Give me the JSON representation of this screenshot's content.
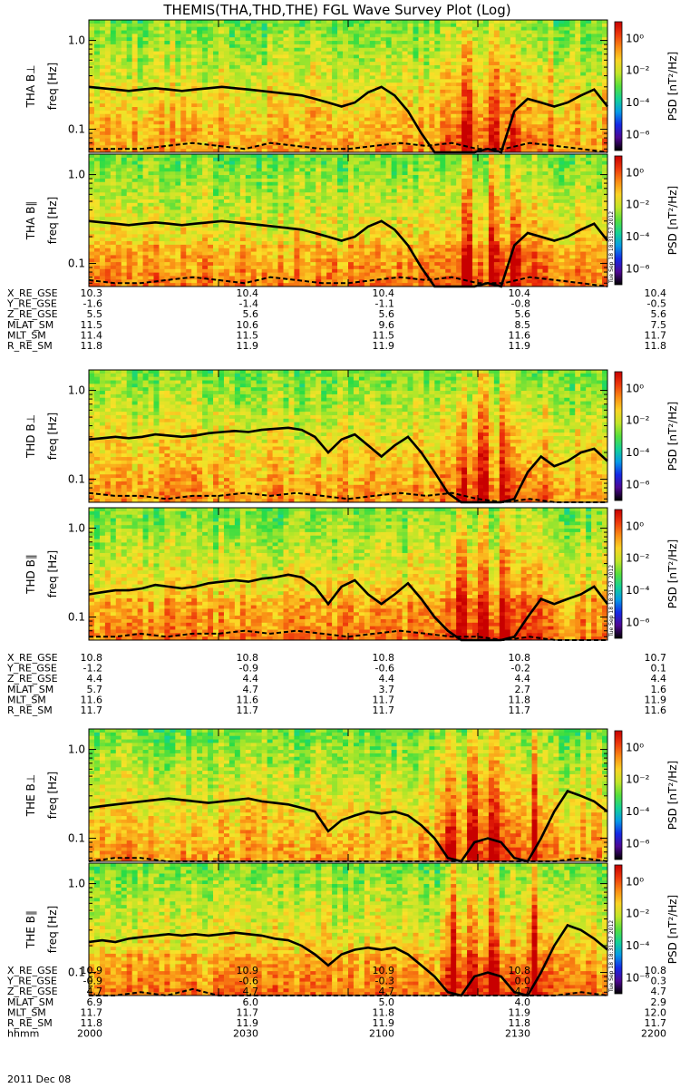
{
  "title": "THEMIS(THA,THD,THE) FGL Wave Survey Plot (Log)",
  "ylabel": "freq [Hz]",
  "colorbar_label": "PSD [nT²/Hz]",
  "colorbar_ticks": [
    "10⁰",
    "10⁻²",
    "10⁻⁴",
    "10⁻⁶"
  ],
  "freq_ticks": [
    "1.0",
    "0.1"
  ],
  "stamp": "Tue Sep 18 18:31:57 2012",
  "chart_data": {
    "type": "heatmap",
    "x_axis": {
      "label": "hhmm",
      "ticks": [
        "2000",
        "2030",
        "2100",
        "2130",
        "2200"
      ],
      "date": "2011 Dec 08"
    },
    "y_axis": {
      "label": "freq [Hz]",
      "scale": "log",
      "range": [
        0.055,
        1.7
      ],
      "ticks": [
        1.0,
        0.1
      ]
    },
    "colorbar": {
      "label": "PSD [nT²/Hz]",
      "scale": "log",
      "range_exponent": [
        -7,
        1
      ],
      "ticks_exponent": [
        0,
        -2,
        -4,
        -6
      ]
    },
    "probes": [
      {
        "id": "THA",
        "panels": [
          {
            "label": "THA B⊥",
            "bright_bands": [
              0.73,
              0.78,
              0.82
            ],
            "solid": [
              0.3,
              0.29,
              0.28,
              0.27,
              0.28,
              0.29,
              0.28,
              0.27,
              0.28,
              0.29,
              0.3,
              0.29,
              0.28,
              0.27,
              0.26,
              0.25,
              0.24,
              0.22,
              0.2,
              0.18,
              0.2,
              0.26,
              0.3,
              0.24,
              0.16,
              0.09,
              0.05,
              0.05,
              0.05,
              0.05,
              0.06,
              0.05,
              0.16,
              0.22,
              0.2,
              0.18,
              0.2,
              0.24,
              0.28,
              0.18
            ],
            "dashed": [
              0.06,
              0.06,
              0.06,
              0.065,
              0.07,
              0.065,
              0.06,
              0.07,
              0.065,
              0.06,
              0.06,
              0.065,
              0.07,
              0.065,
              0.07,
              0.06,
              0.06,
              0.07,
              0.065,
              0.06,
              0.05
            ]
          },
          {
            "label": "THA B∥",
            "bright_bands": [
              0.73,
              0.78,
              0.82
            ],
            "solid": [
              0.3,
              0.29,
              0.28,
              0.27,
              0.28,
              0.29,
              0.28,
              0.27,
              0.28,
              0.29,
              0.3,
              0.29,
              0.28,
              0.27,
              0.26,
              0.25,
              0.24,
              0.22,
              0.2,
              0.18,
              0.2,
              0.26,
              0.3,
              0.24,
              0.16,
              0.09,
              0.05,
              0.05,
              0.05,
              0.05,
              0.06,
              0.05,
              0.16,
              0.22,
              0.2,
              0.18,
              0.2,
              0.24,
              0.28,
              0.18
            ],
            "dashed": [
              0.065,
              0.06,
              0.06,
              0.065,
              0.07,
              0.065,
              0.06,
              0.07,
              0.065,
              0.06,
              0.06,
              0.065,
              0.07,
              0.065,
              0.07,
              0.06,
              0.06,
              0.07,
              0.065,
              0.06,
              0.05
            ]
          }
        ],
        "ephemeris": [
          {
            "name": "X_RE_GSE",
            "values": [
              "10.3",
              "10.4",
              "10.4",
              "10.4",
              "10.4"
            ]
          },
          {
            "name": "Y_RE_GSE",
            "values": [
              "-1.6",
              "-1.4",
              "-1.1",
              "-0.8",
              "-0.5"
            ]
          },
          {
            "name": "Z_RE_GSE",
            "values": [
              "5.5",
              "5.6",
              "5.6",
              "5.6",
              "5.6"
            ]
          },
          {
            "name": "MLAT_SM",
            "values": [
              "11.5",
              "10.6",
              "9.6",
              "8.5",
              "7.5"
            ]
          },
          {
            "name": "MLT_SM",
            "values": [
              "11.4",
              "11.5",
              "11.5",
              "11.6",
              "11.7"
            ]
          },
          {
            "name": "R_RE_SM",
            "values": [
              "11.8",
              "11.9",
              "11.9",
              "11.9",
              "11.8"
            ]
          }
        ]
      },
      {
        "id": "THD",
        "panels": [
          {
            "label": "THD B⊥",
            "bright_bands": [
              0.72,
              0.76,
              0.8
            ],
            "solid": [
              0.28,
              0.29,
              0.3,
              0.29,
              0.3,
              0.32,
              0.31,
              0.3,
              0.31,
              0.33,
              0.34,
              0.35,
              0.34,
              0.36,
              0.37,
              0.38,
              0.36,
              0.3,
              0.2,
              0.28,
              0.32,
              0.24,
              0.18,
              0.24,
              0.3,
              0.2,
              0.12,
              0.07,
              0.05,
              0.05,
              0.05,
              0.05,
              0.06,
              0.12,
              0.18,
              0.14,
              0.16,
              0.2,
              0.22,
              0.16
            ],
            "dashed": [
              0.07,
              0.065,
              0.065,
              0.06,
              0.065,
              0.065,
              0.07,
              0.065,
              0.07,
              0.065,
              0.06,
              0.065,
              0.07,
              0.065,
              0.07,
              0.06,
              0.055,
              0.06,
              0.055,
              0.05,
              0.05
            ]
          },
          {
            "label": "THD B∥",
            "bright_bands": [
              0.72,
              0.76,
              0.8
            ],
            "solid": [
              0.18,
              0.19,
              0.2,
              0.2,
              0.21,
              0.23,
              0.22,
              0.21,
              0.22,
              0.24,
              0.25,
              0.26,
              0.25,
              0.27,
              0.28,
              0.3,
              0.28,
              0.22,
              0.14,
              0.22,
              0.26,
              0.18,
              0.14,
              0.18,
              0.24,
              0.16,
              0.1,
              0.07,
              0.05,
              0.05,
              0.05,
              0.05,
              0.06,
              0.1,
              0.16,
              0.14,
              0.16,
              0.18,
              0.22,
              0.14
            ],
            "dashed": [
              0.06,
              0.06,
              0.065,
              0.06,
              0.065,
              0.065,
              0.07,
              0.065,
              0.07,
              0.065,
              0.06,
              0.065,
              0.07,
              0.065,
              0.06,
              0.06,
              0.055,
              0.06,
              0.055,
              0.05,
              0.05
            ]
          }
        ],
        "ephemeris": [
          {
            "name": "X_RE_GSE",
            "values": [
              "10.8",
              "10.8",
              "10.8",
              "10.8",
              "10.7"
            ]
          },
          {
            "name": "Y_RE_GSE",
            "values": [
              "-1.2",
              "-0.9",
              "-0.6",
              "-0.2",
              "0.1"
            ]
          },
          {
            "name": "Z_RE_GSE",
            "values": [
              "4.4",
              "4.4",
              "4.4",
              "4.4",
              "4.4"
            ]
          },
          {
            "name": "MLAT_SM",
            "values": [
              "5.7",
              "4.7",
              "3.7",
              "2.7",
              "1.6"
            ]
          },
          {
            "name": "MLT_SM",
            "values": [
              "11.6",
              "11.6",
              "11.7",
              "11.8",
              "11.9"
            ]
          },
          {
            "name": "R_RE_SM",
            "values": [
              "11.7",
              "11.7",
              "11.7",
              "11.7",
              "11.6"
            ]
          }
        ]
      },
      {
        "id": "THE",
        "panels": [
          {
            "label": "THE B⊥",
            "bright_bands": [
              0.7,
              0.74,
              0.78,
              0.86
            ],
            "solid": [
              0.22,
              0.23,
              0.24,
              0.25,
              0.26,
              0.27,
              0.28,
              0.27,
              0.26,
              0.25,
              0.26,
              0.27,
              0.28,
              0.26,
              0.25,
              0.24,
              0.22,
              0.2,
              0.12,
              0.16,
              0.18,
              0.2,
              0.19,
              0.2,
              0.18,
              0.14,
              0.1,
              0.06,
              0.05,
              0.09,
              0.1,
              0.09,
              0.06,
              0.05,
              0.1,
              0.2,
              0.34,
              0.3,
              0.26,
              0.2
            ],
            "dashed": [
              0.055,
              0.06,
              0.06,
              0.055,
              0.05,
              0.055,
              0.05,
              0.05,
              0.055,
              0.05,
              0.05,
              0.055,
              0.05,
              0.05,
              0.05,
              0.055,
              0.05,
              0.05,
              0.05,
              0.06,
              0.05
            ]
          },
          {
            "label": "THE B∥",
            "bright_bands": [
              0.7,
              0.74,
              0.78,
              0.86
            ],
            "solid": [
              0.22,
              0.23,
              0.22,
              0.24,
              0.25,
              0.26,
              0.27,
              0.26,
              0.27,
              0.26,
              0.27,
              0.28,
              0.27,
              0.26,
              0.24,
              0.23,
              0.2,
              0.16,
              0.12,
              0.16,
              0.18,
              0.19,
              0.18,
              0.19,
              0.16,
              0.12,
              0.09,
              0.06,
              0.05,
              0.09,
              0.1,
              0.09,
              0.06,
              0.05,
              0.1,
              0.2,
              0.34,
              0.3,
              0.24,
              0.18
            ],
            "dashed": [
              0.055,
              0.055,
              0.06,
              0.055,
              0.065,
              0.055,
              0.05,
              0.055,
              0.055,
              0.05,
              0.05,
              0.055,
              0.05,
              0.05,
              0.05,
              0.055,
              0.05,
              0.05,
              0.05,
              0.06,
              0.05
            ]
          }
        ],
        "ephemeris": [
          {
            "name": "X_RE_GSE",
            "values": [
              "10.9",
              "10.9",
              "10.9",
              "10.8",
              "10.8"
            ]
          },
          {
            "name": "Y_RE_GSE",
            "values": [
              "-0.9",
              "-0.6",
              "-0.3",
              "0.0",
              "0.3"
            ]
          },
          {
            "name": "Z_RE_GSE",
            "values": [
              "4.7",
              "4.7",
              "4.7",
              "4.7",
              "4.7"
            ]
          },
          {
            "name": "MLAT_SM",
            "values": [
              "6.9",
              "6.0",
              "5.0",
              "4.0",
              "2.9"
            ]
          },
          {
            "name": "MLT_SM",
            "values": [
              "11.7",
              "11.7",
              "11.8",
              "11.9",
              "12.0"
            ]
          },
          {
            "name": "R_RE_SM",
            "values": [
              "11.8",
              "11.9",
              "11.9",
              "11.8",
              "11.7"
            ]
          }
        ]
      }
    ]
  }
}
